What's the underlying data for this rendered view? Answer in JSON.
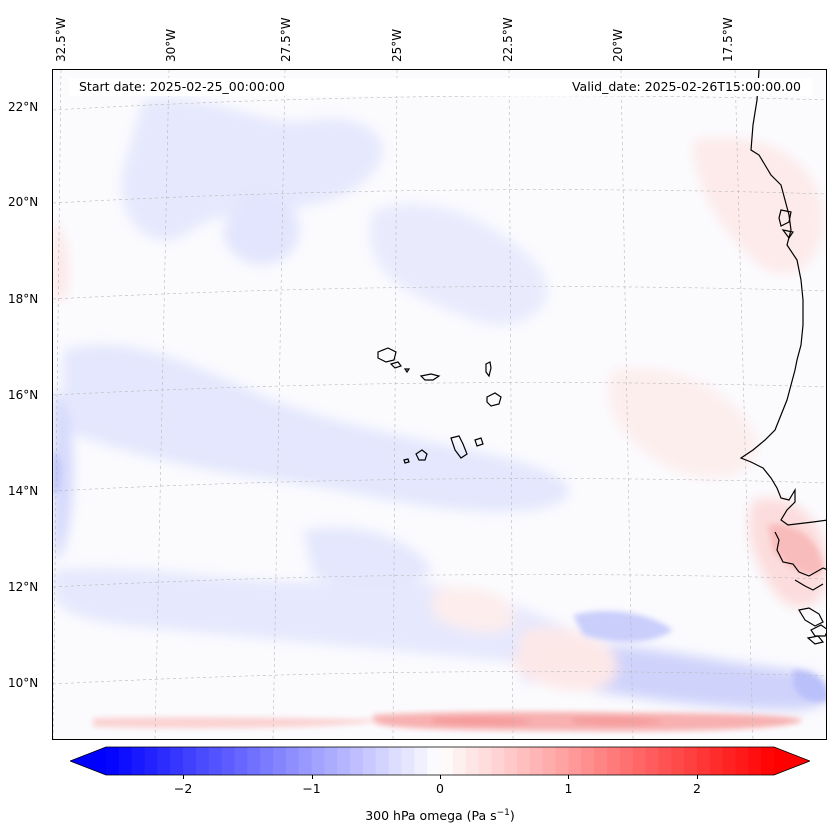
{
  "map": {
    "start_label": "Start date: 2025-02-25_00:00:00",
    "valid_label": "Valid_date: 2025-02-26T15:00:00.00",
    "lon_labels": [
      "32.5°W",
      "30°W",
      "27.5°W",
      "25°W",
      "22.5°W",
      "20°W",
      "17.5°W"
    ],
    "lat_labels": [
      "22°N",
      "20°N",
      "18°N",
      "16°N",
      "14°N",
      "12°N",
      "10°N"
    ],
    "field_colors": {
      "background": "#fbfbfe",
      "light_blue": "#e6e8fd",
      "mid_blue": "#cfd3fb",
      "strong_blue": "#aab0f6",
      "light_red": "#fde9e9",
      "mid_red": "#fbcaca",
      "strong_red": "#f7a3a3"
    },
    "coastline_color": "#000000"
  },
  "colorbar": {
    "ticks": [
      "−2",
      "−1",
      "0",
      "1",
      "2"
    ],
    "tick_values": [
      -2,
      -1,
      0,
      1,
      2
    ],
    "range": [
      -2.6,
      2.6
    ],
    "colormap": "bwr",
    "title_text": "300 hPa omega (Pa s",
    "title_sup": "−1",
    "title_end": ")"
  }
}
